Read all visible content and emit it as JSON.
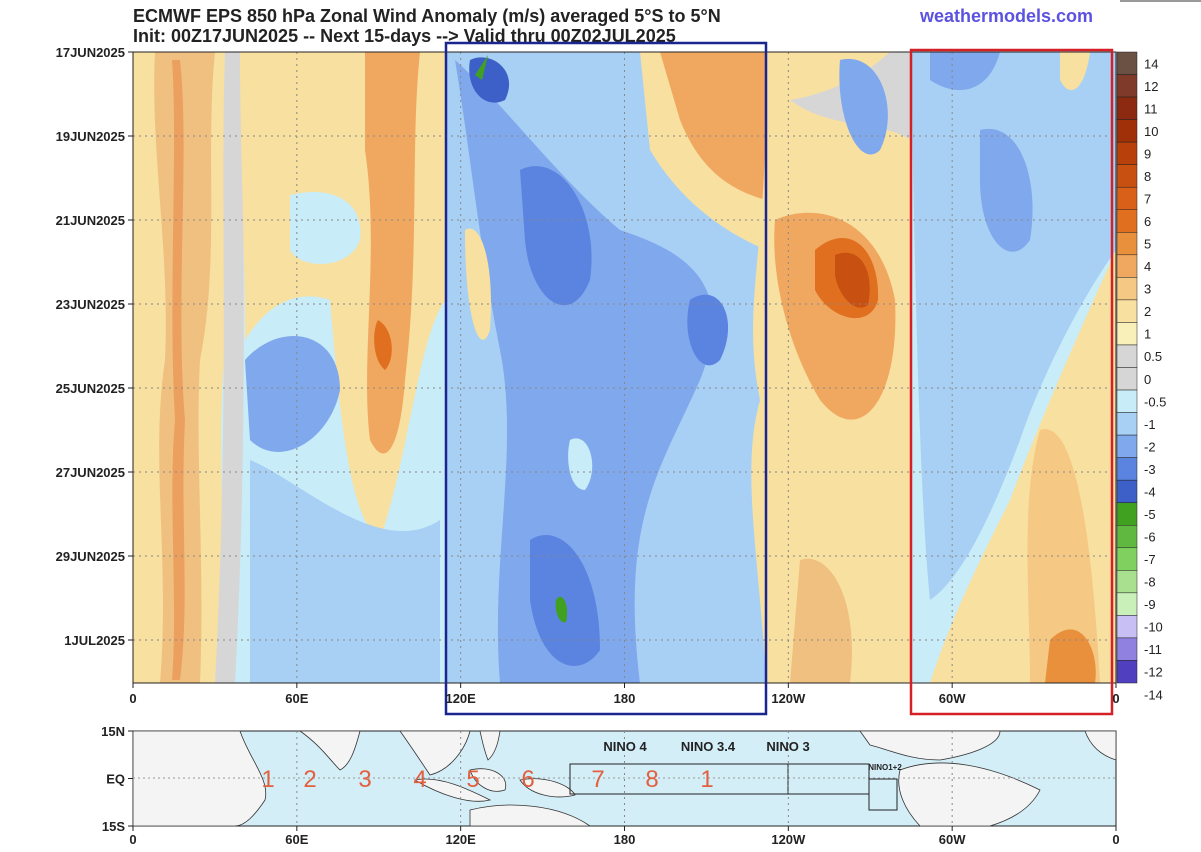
{
  "header": {
    "title": "ECMWF EPS 850 hPa Zonal Wind Anomaly (m/s) averaged 5°S to 5°N",
    "subtitle": "Init: 00Z17JUN2025 -- Next 15-days --> Valid thru 00Z02JUL2025",
    "watermark": "weathermodels.com"
  },
  "hovmoller": {
    "y_labels": [
      "17JUN2025",
      "19JUN2025",
      "21JUN2025",
      "23JUN2025",
      "25JUN2025",
      "27JUN2025",
      "29JUN2025",
      "1JUL2025"
    ],
    "x_labels": [
      "0",
      "60E",
      "120E",
      "180",
      "120W",
      "60W",
      "0"
    ]
  },
  "colorbar": {
    "labels": [
      "14",
      "12",
      "11",
      "10",
      "9",
      "8",
      "7",
      "6",
      "5",
      "4",
      "3",
      "2",
      "1",
      "0.5",
      "0",
      "-0.5",
      "-1",
      "-2",
      "-3",
      "-4",
      "-5",
      "-6",
      "-7",
      "-8",
      "-9",
      "-10",
      "-11",
      "-12",
      "-14"
    ],
    "colors": [
      "#6b5044",
      "#7f3a2a",
      "#8b2a10",
      "#a03008",
      "#b8400a",
      "#c85010",
      "#d86018",
      "#e07020",
      "#e8903c",
      "#f0a860",
      "#f5c884",
      "#f8e0a0",
      "#f8f0b8",
      "#d6d6d6",
      "#d6d6d6",
      "#c8ecf8",
      "#a8d0f4",
      "#80a8ec",
      "#5a84e0",
      "#3c60c8",
      "#40a020",
      "#60b840",
      "#80d060",
      "#a8e090",
      "#c8f0b8",
      "#c8c0f4",
      "#9080e0",
      "#5040c0"
    ]
  },
  "map": {
    "y_labels": [
      "15N",
      "EQ",
      "15S"
    ],
    "x_labels": [
      "0",
      "60E",
      "120E",
      "180",
      "120W",
      "60W",
      "0"
    ],
    "regions": [
      "NINO 4",
      "NINO 3.4",
      "NINO 3",
      "NINO1+2"
    ],
    "phases": [
      "1",
      "2",
      "3",
      "4",
      "5",
      "6",
      "7",
      "8",
      "1"
    ]
  }
}
